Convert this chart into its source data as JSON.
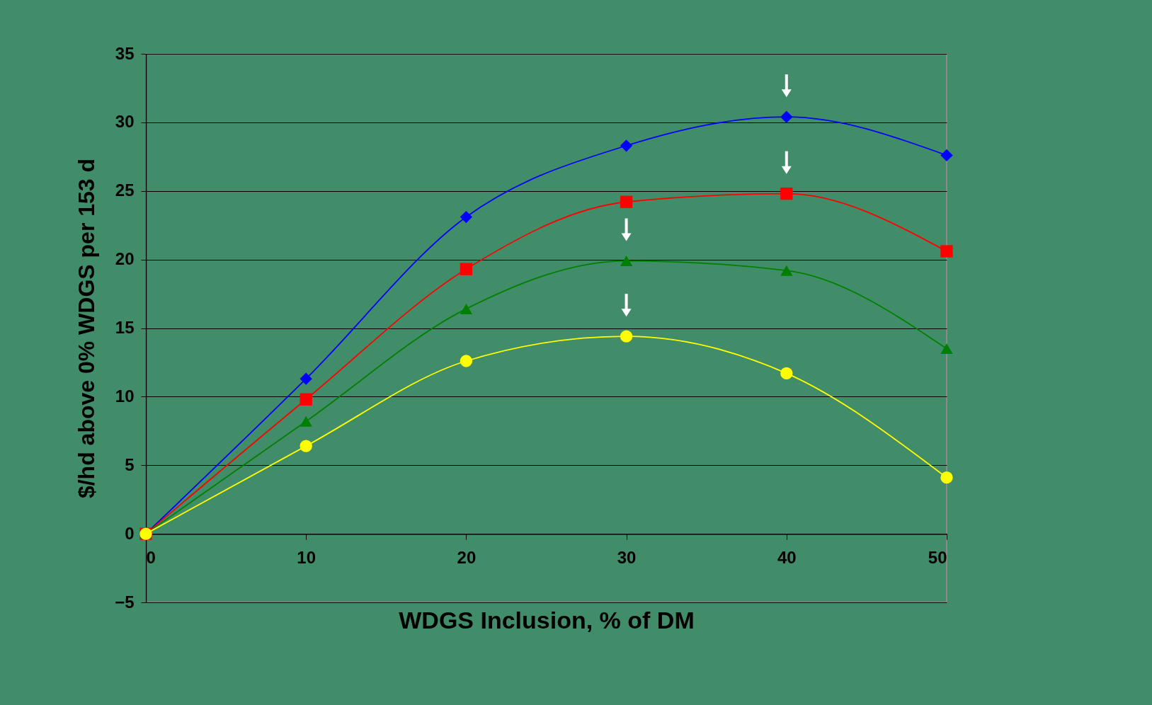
{
  "chart_data": {
    "type": "line",
    "xlabel": "WDGS Inclusion, % of DM",
    "ylabel": "$/hd above 0% WDGS per 153 d",
    "x": [
      0,
      10,
      20,
      30,
      40,
      50
    ],
    "series": [
      {
        "color": "#0000ff",
        "marker": "diamond",
        "values": [
          0,
          11.3,
          23.1,
          28.3,
          30.4,
          27.6
        ]
      },
      {
        "color": "#ff0000",
        "marker": "square",
        "values": [
          0,
          9.8,
          19.3,
          24.2,
          24.8,
          20.6
        ]
      },
      {
        "color": "#008000",
        "marker": "triangle",
        "values": [
          0,
          8.2,
          16.4,
          19.9,
          19.2,
          13.5
        ]
      },
      {
        "color": "#ffff00",
        "marker": "circle",
        "values": [
          0,
          6.4,
          12.6,
          14.4,
          11.7,
          4.1
        ]
      }
    ],
    "xlim": [
      0,
      50
    ],
    "xticks": [
      0,
      10,
      20,
      30,
      40,
      50
    ],
    "ylim": [
      -5,
      35
    ],
    "yticks": [
      -5,
      0,
      5,
      10,
      15,
      20,
      25,
      30,
      35
    ],
    "grid": "y",
    "legend": false,
    "line_style": "solid"
  }
}
